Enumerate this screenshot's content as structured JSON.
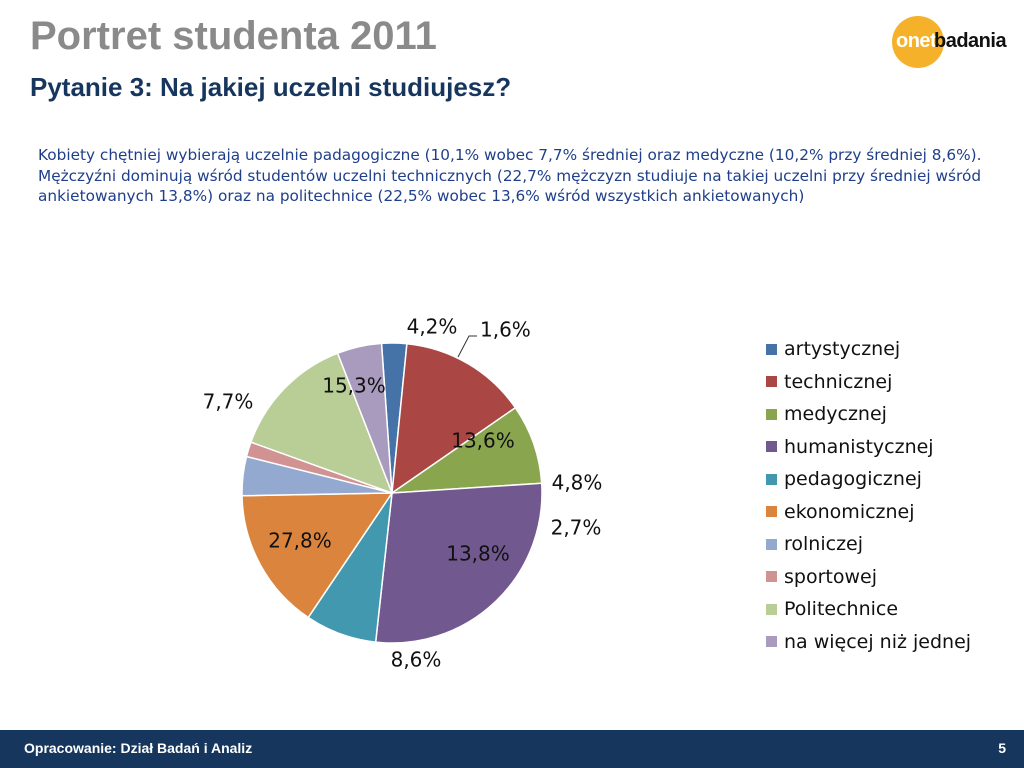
{
  "header": {
    "title": "Portret studenta 2011",
    "subtitle": "Pytanie 3: Na jakiej uczelni studiujesz?",
    "description": "Kobiety chętniej wybierają uczelnie padagogiczne (10,1% wobec 7,7% średniej oraz medyczne (10,2% przy średniej 8,6%). Mężczyźni dominują wśród studentów uczelni technicznych (22,7% mężczyzn studiuje na takiej uczelni przy średniej wśród ankietowanych 13,8%) oraz na politechnice (22,5% wobec 13,6% wśród wszystkich ankietowanych)"
  },
  "logo": {
    "part1": "onet",
    "part2": "badania"
  },
  "chart_data": {
    "type": "pie",
    "title": "",
    "start_angle_deg": 94,
    "legend_position": "right",
    "slices": [
      {
        "name": "artystycznej",
        "value": 2.7,
        "label": "2,7%",
        "color": "#4572a7"
      },
      {
        "name": "technicznej",
        "value": 13.8,
        "label": "13,8%",
        "color": "#aa4643"
      },
      {
        "name": "medycznej",
        "value": 8.6,
        "label": "8,6%",
        "color": "#89a54e"
      },
      {
        "name": "humanistycznej",
        "value": 27.8,
        "label": "27,8%",
        "color": "#71588f"
      },
      {
        "name": "pedagogicznej",
        "value": 7.7,
        "label": "7,7%",
        "color": "#4198af"
      },
      {
        "name": "ekonomicznej",
        "value": 15.3,
        "label": "15,3%",
        "color": "#db843d"
      },
      {
        "name": "rolniczej",
        "value": 4.2,
        "label": "4,2%",
        "color": "#93a9cf"
      },
      {
        "name": "sportowej",
        "value": 1.6,
        "label": "1,6%",
        "color": "#d19392"
      },
      {
        "name": "Politechnice",
        "value": 13.6,
        "label": "13,6%",
        "color": "#b9cd96"
      },
      {
        "name": "na więcej niż jednej",
        "value": 4.8,
        "label": "4,8%",
        "color": "#a99bbd"
      }
    ]
  },
  "legend": {
    "items": [
      {
        "label": "artystycznej",
        "color": "#4572a7"
      },
      {
        "label": "technicznej",
        "color": "#aa4643"
      },
      {
        "label": "medycznej",
        "color": "#89a54e"
      },
      {
        "label": "humanistycznej",
        "color": "#71588f"
      },
      {
        "label": "pedagogicznej",
        "color": "#4198af"
      },
      {
        "label": "ekonomicznej",
        "color": "#db843d"
      },
      {
        "label": "rolniczej",
        "color": "#93a9cf"
      },
      {
        "label": "sportowej",
        "color": "#d19392"
      },
      {
        "label": "Politechnice",
        "color": "#b9cd96"
      },
      {
        "label": "na więcej niż jednej",
        "color": "#a99bbd"
      }
    ]
  },
  "footer": {
    "text": "Opracowanie: Dział Badań i Analiz",
    "page": "5"
  }
}
